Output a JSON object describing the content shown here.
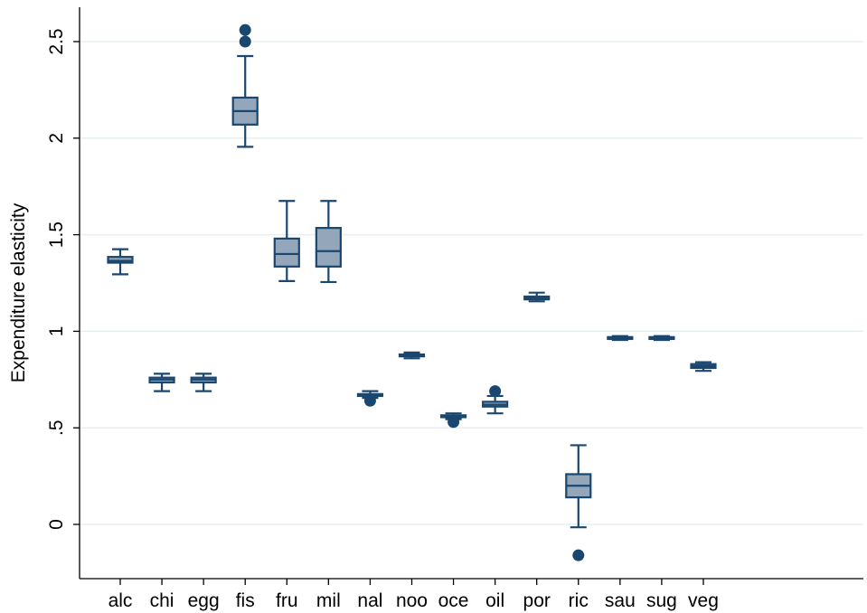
{
  "chart_data": {
    "type": "box",
    "title": "",
    "xlabel": "",
    "ylabel": "Expenditure elasticity",
    "ylim": [
      -0.28,
      2.68
    ],
    "yticks": [
      {
        "value": 0,
        "label": "0"
      },
      {
        "value": 0.5,
        "label": ".5"
      },
      {
        "value": 1,
        "label": "1"
      },
      {
        "value": 1.5,
        "label": "1.5"
      },
      {
        "value": 2,
        "label": "2"
      },
      {
        "value": 2.5,
        "label": "2.5"
      }
    ],
    "grid": true,
    "legend": "none",
    "colors": {
      "box_fill": "#94a6ba",
      "box_stroke": "#1a476f",
      "grid": "#e8efef",
      "axis": "#000000"
    },
    "categories": [
      "alc",
      "chi",
      "egg",
      "fis",
      "fru",
      "mil",
      "nal",
      "noo",
      "oce",
      "oil",
      "por",
      "ric",
      "sau",
      "sug",
      "veg"
    ],
    "boxes": [
      {
        "category": "alc",
        "whisker_low": 1.295,
        "q1": 1.355,
        "median": 1.365,
        "q3": 1.385,
        "whisker_high": 1.425,
        "outliers": []
      },
      {
        "category": "chi",
        "whisker_low": 0.69,
        "q1": 0.735,
        "median": 0.75,
        "q3": 0.76,
        "whisker_high": 0.78,
        "outliers": []
      },
      {
        "category": "egg",
        "whisker_low": 0.69,
        "q1": 0.735,
        "median": 0.75,
        "q3": 0.76,
        "whisker_high": 0.78,
        "outliers": []
      },
      {
        "category": "fis",
        "whisker_low": 1.955,
        "q1": 2.07,
        "median": 2.14,
        "q3": 2.21,
        "whisker_high": 2.425,
        "outliers": [
          2.5,
          2.56
        ]
      },
      {
        "category": "fru",
        "whisker_low": 1.26,
        "q1": 1.335,
        "median": 1.4,
        "q3": 1.48,
        "whisker_high": 1.675,
        "outliers": []
      },
      {
        "category": "mil",
        "whisker_low": 1.255,
        "q1": 1.335,
        "median": 1.415,
        "q3": 1.535,
        "whisker_high": 1.675,
        "outliers": []
      },
      {
        "category": "nal",
        "whisker_low": 0.655,
        "q1": 0.665,
        "median": 0.67,
        "q3": 0.675,
        "whisker_high": 0.69,
        "outliers": [
          0.64
        ]
      },
      {
        "category": "noo",
        "whisker_low": 0.86,
        "q1": 0.87,
        "median": 0.875,
        "q3": 0.88,
        "whisker_high": 0.89,
        "outliers": []
      },
      {
        "category": "oce",
        "whisker_low": 0.545,
        "q1": 0.555,
        "median": 0.56,
        "q3": 0.565,
        "whisker_high": 0.575,
        "outliers": [
          0.53
        ]
      },
      {
        "category": "oil",
        "whisker_low": 0.575,
        "q1": 0.61,
        "median": 0.62,
        "q3": 0.635,
        "whisker_high": 0.665,
        "outliers": [
          0.69
        ]
      },
      {
        "category": "por",
        "whisker_low": 1.155,
        "q1": 1.165,
        "median": 1.17,
        "q3": 1.18,
        "whisker_high": 1.2,
        "outliers": []
      },
      {
        "category": "ric",
        "whisker_low": -0.015,
        "q1": 0.14,
        "median": 0.2,
        "q3": 0.26,
        "whisker_high": 0.41,
        "outliers": [
          -0.16
        ]
      },
      {
        "category": "sau",
        "whisker_low": 0.955,
        "q1": 0.96,
        "median": 0.965,
        "q3": 0.97,
        "whisker_high": 0.975,
        "outliers": []
      },
      {
        "category": "sug",
        "whisker_low": 0.955,
        "q1": 0.96,
        "median": 0.965,
        "q3": 0.97,
        "whisker_high": 0.975,
        "outliers": []
      },
      {
        "category": "veg",
        "whisker_low": 0.795,
        "q1": 0.81,
        "median": 0.82,
        "q3": 0.83,
        "whisker_high": 0.84,
        "outliers": []
      }
    ]
  }
}
